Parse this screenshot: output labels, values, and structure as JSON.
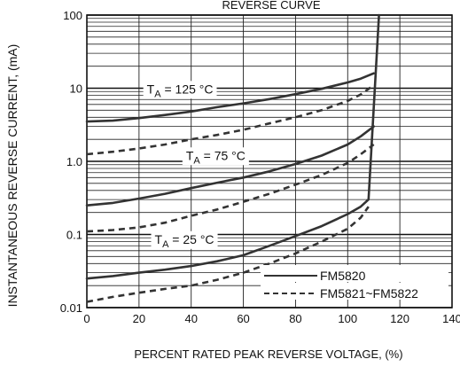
{
  "chart_data": {
    "type": "line",
    "title": "REVERSE CURVE",
    "xlabel": "PERCENT RATED PEAK REVERSE VOLTAGE, (%)",
    "ylabel": "INSTANTANEOUS REVERSE CURRENT, (mA)",
    "xlim": [
      0,
      140
    ],
    "ylim": [
      0.01,
      100
    ],
    "yscale": "log",
    "grid": true,
    "x_ticks": [
      "0",
      "20",
      "40",
      "60",
      "80",
      "100",
      "120",
      "140"
    ],
    "y_ticks": [
      "100",
      "10",
      "1.0",
      "0.1",
      "0.01"
    ],
    "legend": {
      "placement": "bottom-right",
      "entries": [
        {
          "label": "FM5820",
          "style": "solid"
        },
        {
          "label": "FM5821~FM5822",
          "style": "dashed"
        }
      ]
    },
    "annotations": [
      {
        "id": "t125",
        "sub": "A",
        "pre": "T",
        "value": " = 125 °C",
        "x": 23,
        "y": 8.5
      },
      {
        "id": "t75",
        "sub": "A",
        "pre": "T",
        "value": " = 75 °C",
        "x": 38,
        "y": 1.05
      },
      {
        "id": "t25",
        "sub": "A",
        "pre": "T",
        "value": " = 25 °C",
        "x": 26,
        "y": 0.075
      }
    ],
    "series": [
      {
        "name": "FM5820",
        "temperature": "125 °C",
        "style": "solid",
        "x": [
          0,
          10,
          20,
          30,
          40,
          50,
          60,
          70,
          80,
          90,
          100,
          105,
          110
        ],
        "y": [
          3.5,
          3.6,
          3.9,
          4.3,
          4.8,
          5.5,
          6.2,
          7.1,
          8.3,
          9.8,
          12,
          13.5,
          16
        ]
      },
      {
        "name": "FM5821~FM5822",
        "temperature": "125 °C",
        "style": "dashed",
        "x": [
          0,
          10,
          20,
          30,
          40,
          50,
          60,
          70,
          80,
          90,
          100,
          105,
          110
        ],
        "y": [
          1.25,
          1.35,
          1.5,
          1.7,
          2.0,
          2.3,
          2.7,
          3.3,
          4.0,
          5.0,
          6.7,
          8.2,
          11
        ]
      },
      {
        "name": "FM5820",
        "temperature": "75 °C",
        "style": "solid",
        "x": [
          0,
          10,
          20,
          30,
          40,
          50,
          60,
          70,
          80,
          90,
          100,
          105,
          110
        ],
        "y": [
          0.25,
          0.27,
          0.31,
          0.36,
          0.43,
          0.51,
          0.6,
          0.73,
          0.92,
          1.2,
          1.7,
          2.2,
          3.0
        ]
      },
      {
        "name": "FM5821~FM5822",
        "temperature": "75 °C",
        "style": "dashed",
        "x": [
          0,
          10,
          20,
          30,
          40,
          50,
          60,
          70,
          80,
          90,
          100,
          105,
          110
        ],
        "y": [
          0.11,
          0.115,
          0.125,
          0.145,
          0.18,
          0.22,
          0.28,
          0.36,
          0.48,
          0.65,
          0.95,
          1.25,
          1.7
        ]
      },
      {
        "name": "FM5820",
        "temperature": "25 °C",
        "style": "solid",
        "x": [
          0,
          10,
          20,
          30,
          40,
          50,
          60,
          70,
          80,
          90,
          100,
          105,
          108,
          112
        ],
        "y": [
          0.025,
          0.027,
          0.03,
          0.033,
          0.037,
          0.043,
          0.052,
          0.07,
          0.095,
          0.13,
          0.19,
          0.24,
          0.3,
          100
        ]
      },
      {
        "name": "FM5821~FM5822",
        "temperature": "25 °C",
        "style": "dashed",
        "x": [
          0,
          10,
          20,
          30,
          40,
          50,
          60,
          70,
          80,
          90,
          100,
          105,
          108
        ],
        "y": [
          0.012,
          0.014,
          0.016,
          0.018,
          0.02,
          0.024,
          0.03,
          0.04,
          0.055,
          0.08,
          0.12,
          0.17,
          0.24
        ]
      }
    ]
  }
}
